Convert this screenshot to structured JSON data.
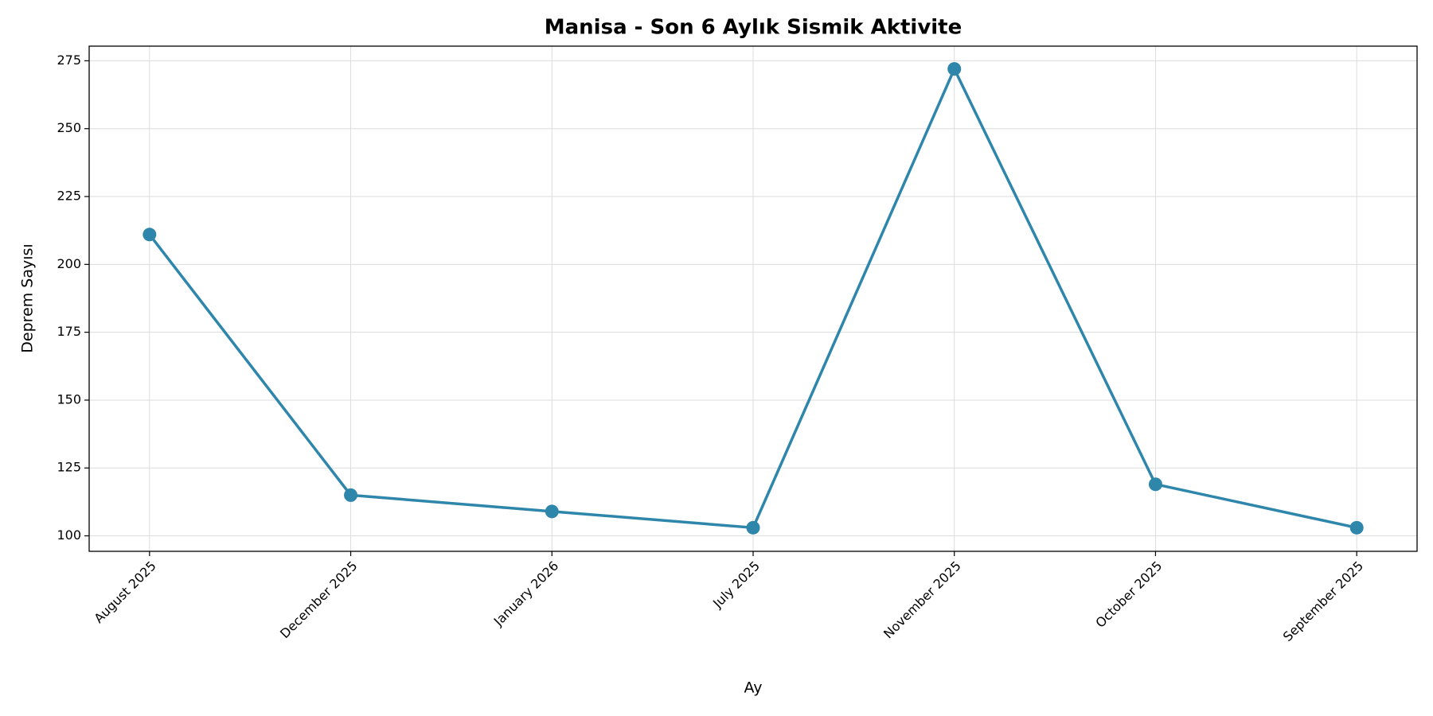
{
  "chart_data": {
    "type": "line",
    "title": "Manisa - Son 6 Aylık Sismik Aktivite",
    "x_label": "Ay",
    "y_label": "Deprem Sayısı",
    "categories": [
      "August 2025",
      "December 2025",
      "January 2026",
      "July 2025",
      "November 2025",
      "October 2025",
      "September 2025"
    ],
    "values": [
      211,
      115,
      109,
      103,
      272,
      119,
      103
    ],
    "color": "#2e86ab",
    "ylim": [
      94.3,
      280.4
    ],
    "yticks": [
      100,
      125,
      150,
      175,
      200,
      225,
      250,
      275
    ],
    "grid": true
  }
}
